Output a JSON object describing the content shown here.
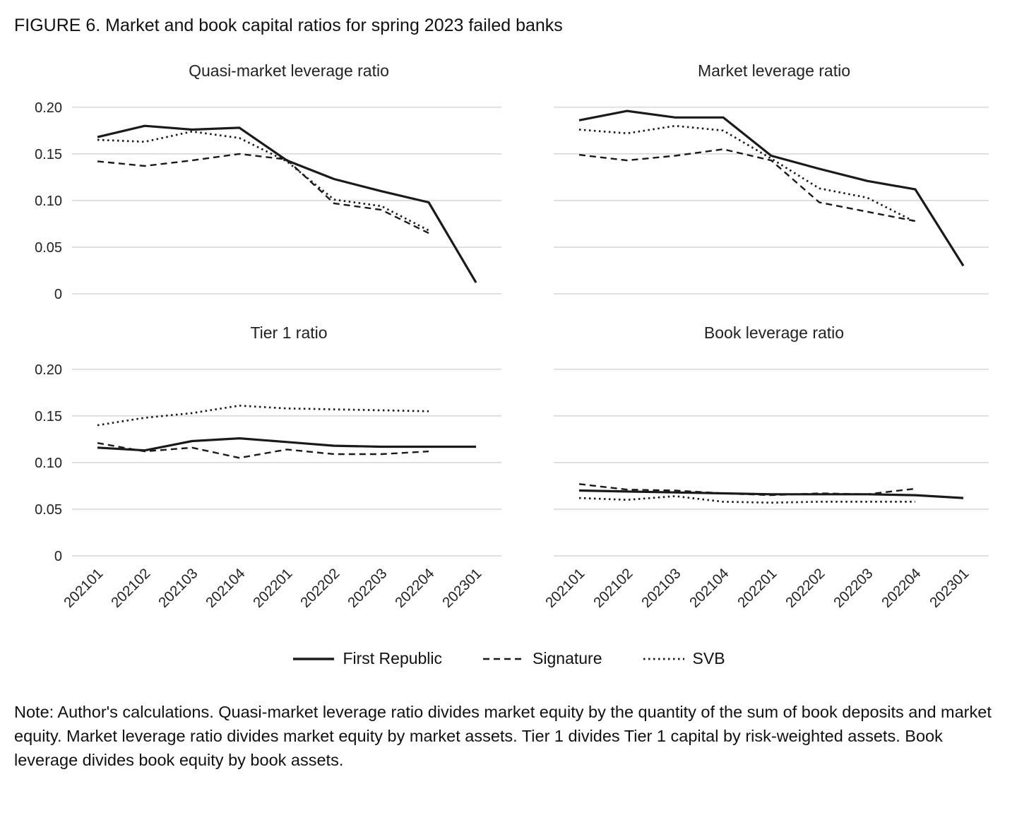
{
  "figure": {
    "title": "FIGURE 6. Market and book capital ratios for spring 2023 failed banks",
    "note": "Note: Author's calculations. Quasi-market leverage ratio divides market equity by the quantity of the sum of book deposits and market equity. Market leverage ratio divides market equity by market assets. Tier 1 divides Tier 1 capital by risk-weighted assets. Book leverage divides book equity by book assets."
  },
  "colors": {
    "line": "#1a1a1a",
    "grid": "#cdcdcd",
    "text": "#222222"
  },
  "legend": {
    "position": "bottom",
    "items": [
      {
        "name": "First Republic",
        "style": "solid"
      },
      {
        "name": "Signature",
        "style": "dashed"
      },
      {
        "name": "SVB",
        "style": "dotted"
      }
    ]
  },
  "chart_data": [
    {
      "type": "line",
      "title": "Quasi-market leverage ratio",
      "categories": [
        "202101",
        "202102",
        "202103",
        "202104",
        "202201",
        "202202",
        "202203",
        "202204",
        "202301"
      ],
      "ylim": [
        0,
        0.215
      ],
      "yticks": [
        {
          "value": 0,
          "label": "0"
        },
        {
          "value": 0.05,
          "label": "0.05"
        },
        {
          "value": 0.1,
          "label": "0.10"
        },
        {
          "value": 0.15,
          "label": "0.15"
        },
        {
          "value": 0.2,
          "label": "0.20"
        }
      ],
      "axes": {
        "show_y_labels": true,
        "show_x_labels": false,
        "grid": true
      },
      "series": [
        {
          "name": "First Republic",
          "style": "solid",
          "values": [
            0.168,
            0.18,
            0.176,
            0.178,
            0.143,
            0.123,
            0.11,
            0.098,
            0.012
          ]
        },
        {
          "name": "Signature",
          "style": "dashed",
          "values": [
            0.142,
            0.137,
            0.143,
            0.15,
            0.144,
            0.097,
            0.09,
            0.065
          ]
        },
        {
          "name": "SVB",
          "style": "dotted",
          "values": [
            0.165,
            0.163,
            0.174,
            0.167,
            0.142,
            0.101,
            0.094,
            0.068
          ]
        }
      ]
    },
    {
      "type": "line",
      "title": "Market leverage ratio",
      "categories": [
        "202101",
        "202102",
        "202103",
        "202104",
        "202201",
        "202202",
        "202203",
        "202204",
        "202301"
      ],
      "ylim": [
        0,
        0.215
      ],
      "yticks": [
        {
          "value": 0,
          "label": "0"
        },
        {
          "value": 0.05,
          "label": "0.05"
        },
        {
          "value": 0.1,
          "label": "0.10"
        },
        {
          "value": 0.15,
          "label": "0.15"
        },
        {
          "value": 0.2,
          "label": "0.20"
        }
      ],
      "axes": {
        "show_y_labels": false,
        "show_x_labels": false,
        "grid": true
      },
      "series": [
        {
          "name": "First Republic",
          "style": "solid",
          "values": [
            0.186,
            0.196,
            0.189,
            0.189,
            0.148,
            0.134,
            0.121,
            0.112,
            0.03
          ]
        },
        {
          "name": "Signature",
          "style": "dashed",
          "values": [
            0.149,
            0.143,
            0.148,
            0.155,
            0.143,
            0.098,
            0.088,
            0.078
          ]
        },
        {
          "name": "SVB",
          "style": "dotted",
          "values": [
            0.176,
            0.172,
            0.18,
            0.175,
            0.145,
            0.113,
            0.103,
            0.077
          ]
        }
      ]
    },
    {
      "type": "line",
      "title": "Tier 1 ratio",
      "categories": [
        "202101",
        "202102",
        "202103",
        "202104",
        "202201",
        "202202",
        "202203",
        "202204",
        "202301"
      ],
      "ylim": [
        0,
        0.215
      ],
      "yticks": [
        {
          "value": 0,
          "label": "0"
        },
        {
          "value": 0.05,
          "label": "0.05"
        },
        {
          "value": 0.1,
          "label": "0.10"
        },
        {
          "value": 0.15,
          "label": "0.15"
        },
        {
          "value": 0.2,
          "label": "0.20"
        }
      ],
      "axes": {
        "show_y_labels": true,
        "show_x_labels": true,
        "grid": true
      },
      "series": [
        {
          "name": "First Republic",
          "style": "solid",
          "values": [
            0.116,
            0.113,
            0.123,
            0.126,
            0.122,
            0.118,
            0.117,
            0.117,
            0.117
          ]
        },
        {
          "name": "Signature",
          "style": "dashed",
          "values": [
            0.121,
            0.112,
            0.116,
            0.105,
            0.114,
            0.109,
            0.109,
            0.112
          ]
        },
        {
          "name": "SVB",
          "style": "dotted",
          "values": [
            0.14,
            0.148,
            0.153,
            0.161,
            0.158,
            0.157,
            0.156,
            0.155
          ]
        }
      ]
    },
    {
      "type": "line",
      "title": "Book leverage ratio",
      "categories": [
        "202101",
        "202102",
        "202103",
        "202104",
        "202201",
        "202202",
        "202203",
        "202204",
        "202301"
      ],
      "ylim": [
        0,
        0.215
      ],
      "yticks": [
        {
          "value": 0,
          "label": "0"
        },
        {
          "value": 0.05,
          "label": "0.05"
        },
        {
          "value": 0.1,
          "label": "0.10"
        },
        {
          "value": 0.15,
          "label": "0.15"
        },
        {
          "value": 0.2,
          "label": "0.20"
        }
      ],
      "axes": {
        "show_y_labels": false,
        "show_x_labels": true,
        "grid": true
      },
      "series": [
        {
          "name": "First Republic",
          "style": "solid",
          "values": [
            0.07,
            0.069,
            0.068,
            0.067,
            0.066,
            0.066,
            0.066,
            0.065,
            0.062
          ]
        },
        {
          "name": "Signature",
          "style": "dashed",
          "values": [
            0.077,
            0.071,
            0.07,
            0.067,
            0.065,
            0.067,
            0.066,
            0.072
          ]
        },
        {
          "name": "SVB",
          "style": "dotted",
          "values": [
            0.062,
            0.06,
            0.064,
            0.058,
            0.057,
            0.058,
            0.058,
            0.058
          ]
        }
      ]
    }
  ]
}
